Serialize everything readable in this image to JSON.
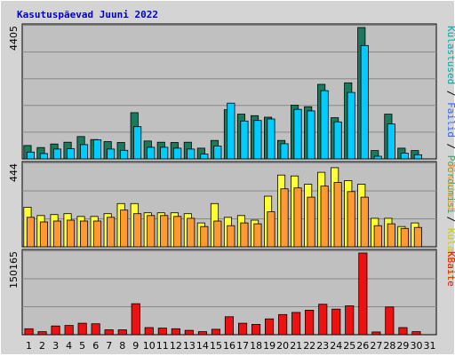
{
  "title": "Kasutuspäevad Juuni 2022",
  "colors": {
    "background": "#c0c0c0",
    "grid": "#888888",
    "visits": "#1a7a5e",
    "pages": "#00ccff",
    "files": "#3366ff",
    "hits": "#33aa66",
    "downloads": "#ffff33",
    "uniq": "#ff9933",
    "kbytes": "#ee1111",
    "weekend_tick": "#0a7a3a"
  },
  "legends": {
    "top": [
      {
        "text": "Külastused",
        "color": "#00aaaa"
      },
      {
        "text": " / ",
        "color": "#000000"
      },
      {
        "text": "Failid",
        "color": "#3366ff"
      },
      {
        "text": " / ",
        "color": "#000000"
      },
      {
        "text": "Pöördumisi",
        "color": "#33aa66"
      }
    ],
    "middle": [
      {
        "text": "Arvuteid",
        "color": "#ff9933"
      },
      {
        "text": " / ",
        "color": "#000000"
      },
      {
        "text": "Külastusi",
        "color": "#cccc00"
      }
    ],
    "bottom": [
      {
        "text": "KBaite",
        "color": "#ee1111"
      }
    ]
  },
  "chart_data": [
    {
      "type": "bar",
      "panel": "top",
      "ymax_label": "4405",
      "ylim": [
        0,
        4405
      ],
      "categories": [
        "1",
        "2",
        "3",
        "4",
        "5",
        "6",
        "7",
        "8",
        "9",
        "10",
        "11",
        "12",
        "13",
        "14",
        "15",
        "16",
        "17",
        "18",
        "19",
        "20",
        "21",
        "22",
        "23",
        "24",
        "25",
        "26",
        "27",
        "28",
        "29",
        "30",
        "31"
      ],
      "series": [
        {
          "values": [
            450,
            380,
            500,
            560,
            750,
            650,
            580,
            550,
            1550,
            600,
            560,
            550,
            560,
            360,
            620,
            1650,
            1500,
            1450,
            1400,
            620,
            1800,
            1750,
            2500,
            1380,
            2550,
            4405,
            280,
            1500,
            360,
            280,
            0
          ]
        },
        {
          "values": [
            230,
            180,
            330,
            340,
            480,
            640,
            330,
            290,
            1080,
            390,
            390,
            360,
            330,
            160,
            430,
            1870,
            1270,
            1290,
            1340,
            510,
            1660,
            1610,
            2290,
            1240,
            2230,
            3800,
            90,
            1170,
            190,
            140,
            0
          ]
        }
      ]
    },
    {
      "type": "bar",
      "panel": "middle",
      "ymax_label": "444",
      "ylim": [
        0,
        444
      ],
      "categories": [
        "1",
        "2",
        "3",
        "4",
        "5",
        "6",
        "7",
        "8",
        "9",
        "10",
        "11",
        "12",
        "13",
        "14",
        "15",
        "16",
        "17",
        "18",
        "19",
        "20",
        "21",
        "22",
        "23",
        "24",
        "25",
        "26",
        "27",
        "28",
        "29",
        "30",
        "31"
      ],
      "series": [
        {
          "values": [
            215,
            170,
            175,
            180,
            165,
            165,
            180,
            235,
            235,
            185,
            185,
            185,
            180,
            130,
            235,
            160,
            170,
            145,
            275,
            390,
            385,
            340,
            405,
            430,
            360,
            340,
            155,
            155,
            110,
            130,
            0
          ]
        },
        {
          "values": [
            160,
            135,
            140,
            145,
            140,
            140,
            160,
            200,
            180,
            170,
            170,
            165,
            155,
            110,
            140,
            115,
            130,
            125,
            190,
            315,
            320,
            270,
            330,
            350,
            300,
            270,
            115,
            125,
            100,
            105,
            0
          ]
        }
      ]
    },
    {
      "type": "bar",
      "panel": "bottom",
      "ymax_label": "150165",
      "ylim": [
        0,
        150165
      ],
      "categories": [
        "1",
        "2",
        "3",
        "4",
        "5",
        "6",
        "7",
        "8",
        "9",
        "10",
        "11",
        "12",
        "13",
        "14",
        "15",
        "16",
        "17",
        "18",
        "19",
        "20",
        "21",
        "22",
        "23",
        "24",
        "25",
        "26",
        "27",
        "28",
        "29",
        "30",
        "31"
      ],
      "series": [
        {
          "values": [
            11000,
            5500,
            16000,
            17000,
            21000,
            20000,
            9000,
            9000,
            57000,
            13000,
            12000,
            11000,
            8000,
            5500,
            10000,
            33000,
            21000,
            19000,
            29000,
            37000,
            41000,
            45000,
            56000,
            47000,
            53000,
            150165,
            5000,
            51000,
            13000,
            5500,
            0
          ]
        }
      ]
    }
  ],
  "day_labels": [
    {
      "text": "1",
      "weekend": false
    },
    {
      "text": "2",
      "weekend": false
    },
    {
      "text": "3",
      "weekend": false
    },
    {
      "text": "4",
      "weekend": true
    },
    {
      "text": "5",
      "weekend": true
    },
    {
      "text": "6",
      "weekend": false
    },
    {
      "text": "7",
      "weekend": false
    },
    {
      "text": "8",
      "weekend": false
    },
    {
      "text": "9",
      "weekend": false
    },
    {
      "text": "10",
      "weekend": false
    },
    {
      "text": "11",
      "weekend": true
    },
    {
      "text": "12",
      "weekend": true
    },
    {
      "text": "13",
      "weekend": false
    },
    {
      "text": "14",
      "weekend": false
    },
    {
      "text": "15",
      "weekend": false
    },
    {
      "text": "16",
      "weekend": false
    },
    {
      "text": "17",
      "weekend": false
    },
    {
      "text": "18",
      "weekend": true
    },
    {
      "text": "19",
      "weekend": true
    },
    {
      "text": "20",
      "weekend": false
    },
    {
      "text": "21",
      "weekend": false
    },
    {
      "text": "22",
      "weekend": false
    },
    {
      "text": "23",
      "weekend": false
    },
    {
      "text": "24",
      "weekend": false
    },
    {
      "text": "25",
      "weekend": true
    },
    {
      "text": "26",
      "weekend": true
    },
    {
      "text": "27",
      "weekend": false
    },
    {
      "text": "28",
      "weekend": false
    },
    {
      "text": "29",
      "weekend": false
    },
    {
      "text": "30",
      "weekend": false
    },
    {
      "text": "31",
      "weekend": false
    }
  ]
}
